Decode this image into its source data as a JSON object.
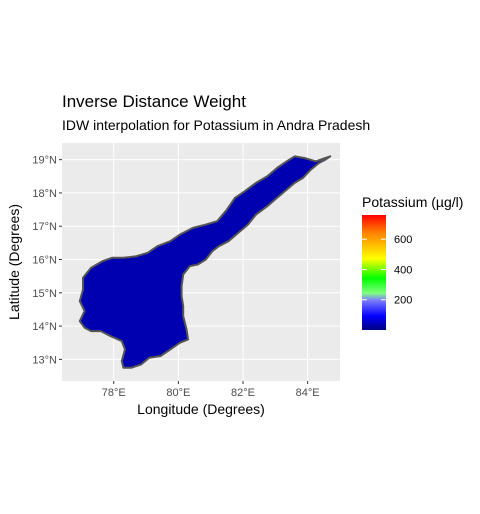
{
  "chart_data": {
    "type": "heatmap",
    "title": "Inverse Distance Weight",
    "subtitle": "IDW interpolation for Potassium in Andra Pradesh",
    "xlabel": "Longitude (Degrees)",
    "ylabel": "Latitude (Degrees)",
    "xlim": [
      76.4,
      85.0
    ],
    "ylim": [
      12.35,
      19.5
    ],
    "x_ticks": [
      {
        "value": 78,
        "label": "78°E"
      },
      {
        "value": 80,
        "label": "80°E"
      },
      {
        "value": 82,
        "label": "82°E"
      },
      {
        "value": 84,
        "label": "84°E"
      }
    ],
    "y_ticks": [
      {
        "value": 13,
        "label": "13°N"
      },
      {
        "value": 14,
        "label": "14°N"
      },
      {
        "value": 15,
        "label": "15°N"
      },
      {
        "value": 16,
        "label": "16°N"
      },
      {
        "value": 17,
        "label": "17°N"
      },
      {
        "value": 18,
        "label": "18°N"
      },
      {
        "value": 19,
        "label": "19°N"
      }
    ],
    "grid": true,
    "legend": {
      "title": "Potassium (µg/l)",
      "placement": "right",
      "range": [
        0,
        760
      ],
      "ticks": [
        {
          "value": 200,
          "label": "200"
        },
        {
          "value": 400,
          "label": "400"
        },
        {
          "value": 600,
          "label": "600"
        }
      ],
      "colors": [
        "#000080",
        "#0000ff",
        "#7f7fff",
        "#7fff7f",
        "#00ff00",
        "#ffff00",
        "#ff7f00",
        "#ff0000"
      ]
    },
    "region_fill": "#0000b0",
    "region_outline": "#555555",
    "panel_background": "#ebebeb",
    "boundary": [
      [
        84.7,
        19.1
      ],
      [
        84.55,
        19.0
      ],
      [
        84.35,
        18.9
      ],
      [
        84.1,
        18.7
      ],
      [
        83.85,
        18.45
      ],
      [
        83.6,
        18.3
      ],
      [
        83.35,
        18.1
      ],
      [
        83.05,
        17.85
      ],
      [
        82.75,
        17.6
      ],
      [
        82.4,
        17.35
      ],
      [
        82.15,
        17.05
      ],
      [
        81.85,
        16.8
      ],
      [
        81.55,
        16.55
      ],
      [
        81.25,
        16.4
      ],
      [
        81.05,
        16.25
      ],
      [
        80.85,
        16.0
      ],
      [
        80.6,
        15.85
      ],
      [
        80.35,
        15.8
      ],
      [
        80.15,
        15.55
      ],
      [
        80.1,
        15.2
      ],
      [
        80.1,
        14.9
      ],
      [
        80.15,
        14.6
      ],
      [
        80.15,
        14.3
      ],
      [
        80.25,
        13.9
      ],
      [
        80.3,
        13.6
      ],
      [
        80.05,
        13.5
      ],
      [
        79.75,
        13.3
      ],
      [
        79.45,
        13.1
      ],
      [
        79.1,
        13.05
      ],
      [
        78.85,
        12.85
      ],
      [
        78.55,
        12.75
      ],
      [
        78.3,
        12.75
      ],
      [
        78.25,
        12.95
      ],
      [
        78.35,
        13.3
      ],
      [
        78.25,
        13.55
      ],
      [
        77.9,
        13.7
      ],
      [
        77.6,
        13.85
      ],
      [
        77.3,
        13.85
      ],
      [
        77.1,
        13.95
      ],
      [
        76.95,
        14.15
      ],
      [
        77.1,
        14.45
      ],
      [
        76.95,
        14.75
      ],
      [
        77.05,
        15.1
      ],
      [
        77.05,
        15.45
      ],
      [
        77.3,
        15.75
      ],
      [
        77.65,
        15.95
      ],
      [
        77.95,
        16.05
      ],
      [
        78.3,
        16.05
      ],
      [
        78.7,
        16.1
      ],
      [
        79.05,
        16.2
      ],
      [
        79.35,
        16.4
      ],
      [
        79.75,
        16.55
      ],
      [
        80.05,
        16.75
      ],
      [
        80.45,
        16.95
      ],
      [
        80.85,
        17.05
      ],
      [
        81.2,
        17.15
      ],
      [
        81.5,
        17.5
      ],
      [
        81.75,
        17.85
      ],
      [
        82.05,
        18.05
      ],
      [
        82.4,
        18.3
      ],
      [
        82.75,
        18.5
      ],
      [
        83.05,
        18.75
      ],
      [
        83.35,
        18.95
      ],
      [
        83.6,
        19.1
      ],
      [
        83.9,
        19.05
      ],
      [
        84.25,
        18.95
      ],
      [
        84.55,
        19.05
      ]
    ]
  }
}
